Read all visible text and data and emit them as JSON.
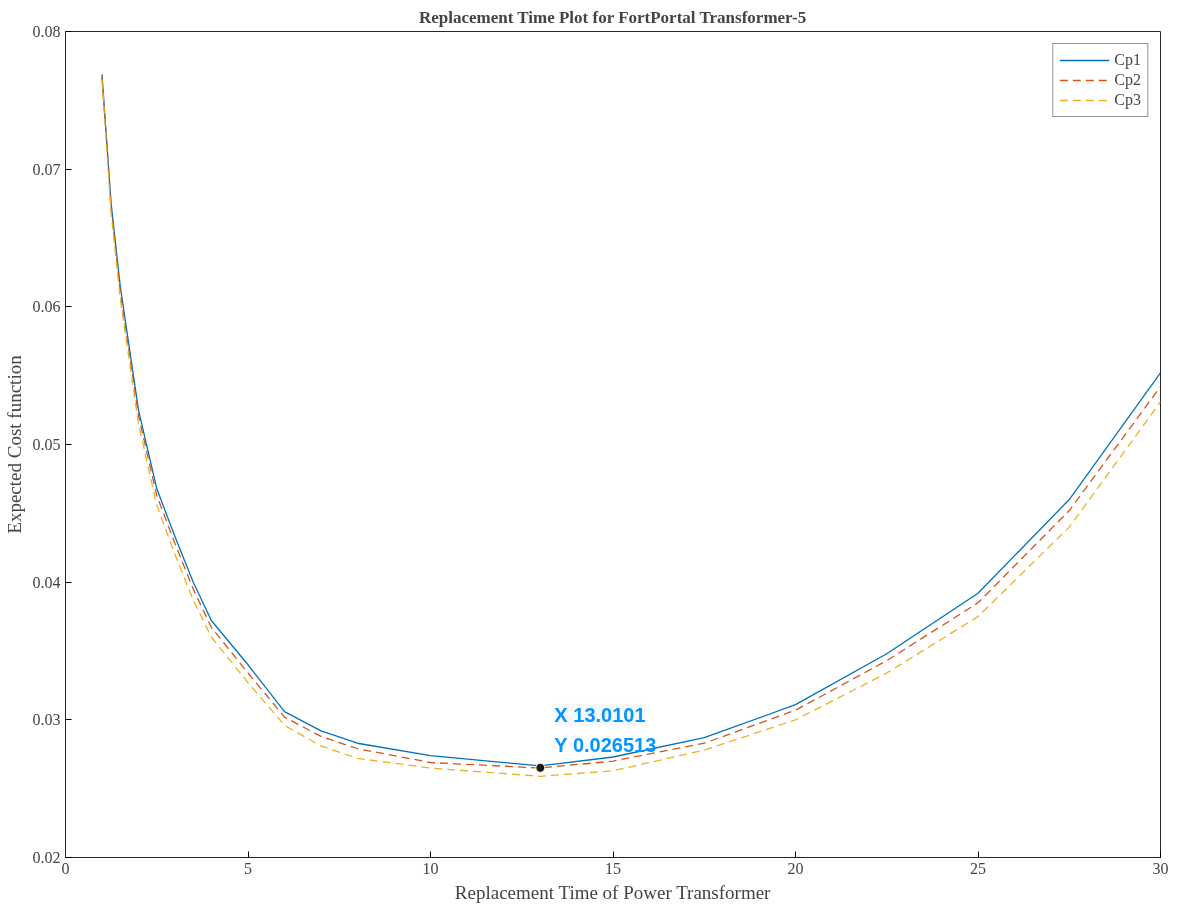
{
  "chart_data": {
    "type": "line",
    "title": "Replacement Time Plot for FortPortal Transformer-5",
    "xlabel": "Replacement Time of Power Transformer",
    "ylabel": "Expected Cost function",
    "x": [
      1,
      1.25,
      1.5,
      2,
      2.5,
      3,
      3.5,
      4,
      5,
      6,
      7,
      8,
      10,
      13,
      15,
      17.5,
      20,
      22.5,
      25,
      27.5,
      30
    ],
    "series": [
      {
        "name": "Cp1",
        "color": "#0072bd",
        "line_style": "solid",
        "values": [
          0.0769,
          0.0675,
          0.0615,
          0.0525,
          0.0468,
          0.0433,
          0.04,
          0.0372,
          0.034,
          0.0306,
          0.0292,
          0.0283,
          0.0274,
          0.02665,
          0.0273,
          0.0287,
          0.0311,
          0.0348,
          0.0392,
          0.046,
          0.0552
        ]
      },
      {
        "name": "Cp2",
        "color": "#d95319",
        "line_style": "dashed",
        "values": [
          0.0767,
          0.0672,
          0.0611,
          0.0521,
          0.0463,
          0.0428,
          0.0395,
          0.0367,
          0.0334,
          0.0302,
          0.0288,
          0.0279,
          0.0269,
          0.0265,
          0.027,
          0.0283,
          0.0307,
          0.0343,
          0.0385,
          0.0452,
          0.0542
        ]
      },
      {
        "name": "Cp3",
        "color": "#edb120",
        "line_style": "dashed",
        "values": [
          0.0765,
          0.0668,
          0.0606,
          0.0515,
          0.0456,
          0.042,
          0.0387,
          0.036,
          0.0327,
          0.0296,
          0.0281,
          0.0272,
          0.0265,
          0.0259,
          0.0263,
          0.0278,
          0.03,
          0.0334,
          0.0375,
          0.044,
          0.0531
        ]
      }
    ],
    "xlim": [
      0,
      30
    ],
    "xticks": [
      0,
      5,
      10,
      15,
      20,
      25,
      30
    ],
    "ylim": [
      0.02,
      0.08
    ],
    "yticks": [
      0.02,
      0.03,
      0.04,
      0.05,
      0.06,
      0.07,
      0.08
    ],
    "legend": "top right",
    "grid": false,
    "marker": "none",
    "annotations": [
      {
        "text": "X 13.0101\nY 0.026513",
        "x": 13.0101,
        "y": 0.026513
      }
    ]
  }
}
